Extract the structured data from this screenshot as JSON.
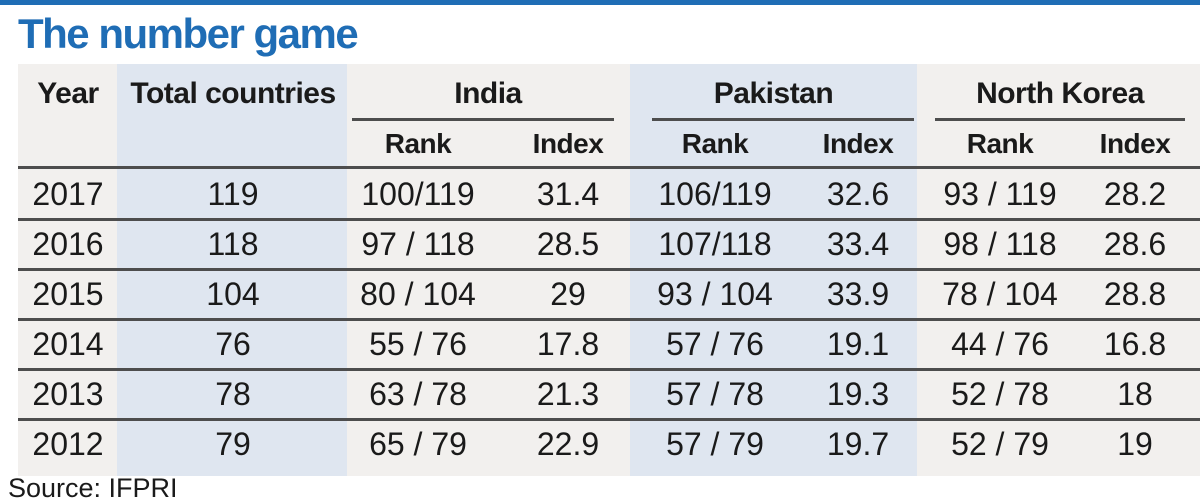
{
  "title": "The number game",
  "source": "Source: IFPRI",
  "colors": {
    "title": "#1f6db5",
    "panel": "#f2f0ee",
    "band": "#dfe6f0"
  },
  "chart_data": {
    "type": "table",
    "title": "The number game",
    "columns": {
      "year": "Year",
      "total": "Total countries",
      "groups": [
        "India",
        "Pakistan",
        "North Korea"
      ],
      "sub": [
        "Rank",
        "Index"
      ]
    },
    "rows": [
      {
        "year": "2017",
        "total": "119",
        "india_rank": "100/119",
        "india_index": "31.4",
        "pak_rank": "106/119",
        "pak_index": "32.6",
        "nk_rank": "93 / 119",
        "nk_index": "28.2"
      },
      {
        "year": "2016",
        "total": "118",
        "india_rank": "97 / 118",
        "india_index": "28.5",
        "pak_rank": "107/118",
        "pak_index": "33.4",
        "nk_rank": "98 / 118",
        "nk_index": "28.6"
      },
      {
        "year": "2015",
        "total": "104",
        "india_rank": "80 / 104",
        "india_index": "29",
        "pak_rank": "93 / 104",
        "pak_index": "33.9",
        "nk_rank": "78 / 104",
        "nk_index": "28.8"
      },
      {
        "year": "2014",
        "total": "76",
        "india_rank": "55 / 76",
        "india_index": "17.8",
        "pak_rank": "57 / 76",
        "pak_index": "19.1",
        "nk_rank": "44 / 76",
        "nk_index": "16.8"
      },
      {
        "year": "2013",
        "total": "78",
        "india_rank": "63 / 78",
        "india_index": "21.3",
        "pak_rank": "57 / 78",
        "pak_index": "19.3",
        "nk_rank": "52 / 78",
        "nk_index": "18"
      },
      {
        "year": "2012",
        "total": "79",
        "india_rank": "65 / 79",
        "india_index": "22.9",
        "pak_rank": "57 / 79",
        "pak_index": "19.7",
        "nk_rank": "52 / 79",
        "nk_index": "19"
      }
    ]
  }
}
